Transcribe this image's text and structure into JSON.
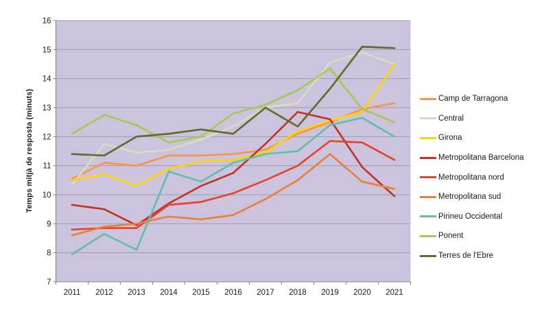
{
  "chart_data": {
    "type": "line",
    "title": "",
    "ylabel": "Temps mitjà de resposta (minuts)",
    "xlabel": "",
    "ylim": [
      7,
      16
    ],
    "y_ticks": [
      "7",
      "8",
      "9",
      "10",
      "11",
      "12",
      "13",
      "14",
      "15",
      "16"
    ],
    "grid": true,
    "legend_position": "right",
    "plot_bg_color": "#CCC4DF",
    "gridline_color": "#A09CA9",
    "axis_color": "#7F7F7F",
    "x": [
      "2011",
      "2012",
      "2013",
      "2014",
      "2015",
      "2016",
      "2017",
      "2018",
      "2019",
      "2020",
      "2021"
    ],
    "series": [
      {
        "name": "Camp de Tarragona",
        "color": "#F79646",
        "values": [
          10.55,
          11.1,
          11.0,
          11.35,
          11.35,
          11.4,
          11.55,
          12.1,
          12.5,
          12.95,
          13.15
        ]
      },
      {
        "name": "Central",
        "color": "#D9DDBF",
        "values": [
          10.35,
          11.75,
          11.45,
          11.55,
          11.9,
          12.35,
          13.0,
          13.15,
          14.55,
          14.9,
          14.5
        ]
      },
      {
        "name": "Girona",
        "color": "#FFD400",
        "values": [
          10.5,
          10.7,
          10.3,
          10.9,
          11.15,
          11.2,
          11.45,
          12.2,
          12.55,
          12.85,
          14.5
        ]
      },
      {
        "name": "Metropolitana Barcelona",
        "color": "#C13526",
        "values": [
          9.65,
          9.5,
          8.95,
          9.7,
          10.3,
          10.75,
          11.75,
          12.85,
          12.6,
          10.95,
          9.95
        ]
      },
      {
        "name": "Metropolitana nord",
        "color": "#E6432B",
        "values": [
          8.8,
          8.85,
          8.85,
          9.65,
          9.75,
          10.05,
          10.5,
          11.0,
          11.85,
          11.8,
          11.2
        ]
      },
      {
        "name": "Metropolitana sud",
        "color": "#E8813B",
        "values": [
          8.6,
          8.9,
          9.0,
          9.25,
          9.15,
          9.3,
          9.85,
          10.5,
          11.4,
          10.45,
          10.2
        ]
      },
      {
        "name": "Pirineu Occidental",
        "color": "#62BFA9",
        "values": [
          7.95,
          8.65,
          8.1,
          10.8,
          10.45,
          11.1,
          11.4,
          11.5,
          12.4,
          12.65,
          12.0
        ]
      },
      {
        "name": "Ponent",
        "color": "#A6CB50",
        "values": [
          12.1,
          12.75,
          12.4,
          11.8,
          12.0,
          12.8,
          13.1,
          13.6,
          14.35,
          12.95,
          12.5
        ]
      },
      {
        "name": "Terres de l'Ebre",
        "color": "#636A2C",
        "values": [
          11.4,
          11.35,
          12.0,
          12.1,
          12.25,
          12.1,
          13.0,
          12.35,
          13.65,
          15.1,
          15.05
        ]
      }
    ]
  }
}
